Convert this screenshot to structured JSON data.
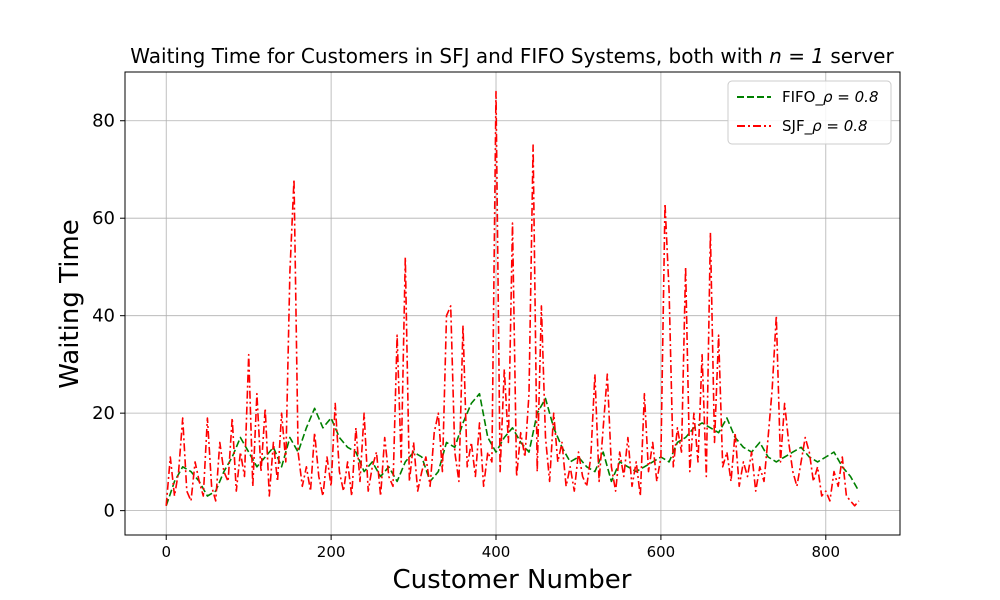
{
  "chart_data": {
    "type": "line",
    "title": "Waiting Time for Customers in SFJ and FIFO Systems, both with",
    "title_math": "n = 1",
    "title_suffix": "server",
    "xlabel": "Customer Number",
    "ylabel": "Waiting Time",
    "xlim": [
      -50,
      890
    ],
    "ylim": [
      -5,
      90
    ],
    "xticks": [
      0,
      200,
      400,
      600,
      800
    ],
    "yticks": [
      0,
      20,
      40,
      60,
      80
    ],
    "grid": true,
    "legend_position": "top-right",
    "series": [
      {
        "name": "FIFO_",
        "name_math": "ρ = 0.8",
        "color": "#008000",
        "style": "dashed",
        "x": [
          0,
          10,
          20,
          30,
          40,
          50,
          60,
          70,
          80,
          90,
          100,
          110,
          120,
          130,
          140,
          150,
          160,
          170,
          180,
          190,
          200,
          210,
          220,
          230,
          240,
          250,
          260,
          270,
          280,
          290,
          300,
          310,
          320,
          330,
          340,
          350,
          360,
          370,
          380,
          390,
          400,
          410,
          420,
          430,
          440,
          450,
          460,
          470,
          480,
          490,
          500,
          510,
          520,
          530,
          540,
          550,
          560,
          570,
          580,
          590,
          600,
          610,
          620,
          630,
          640,
          650,
          660,
          670,
          680,
          690,
          700,
          710,
          720,
          730,
          740,
          750,
          760,
          770,
          780,
          790,
          800,
          810,
          820,
          830,
          840
        ],
        "y": [
          1,
          6,
          9,
          8,
          6,
          3,
          4,
          8,
          11,
          15,
          12,
          9,
          11,
          13,
          9,
          15,
          12,
          17,
          21,
          17,
          19,
          15,
          13,
          12,
          8,
          10,
          7,
          9,
          6,
          10,
          12,
          11,
          6,
          8,
          14,
          13,
          18,
          22,
          24,
          15,
          12,
          15,
          17,
          14,
          12,
          20,
          23,
          17,
          13,
          10,
          11,
          9,
          8,
          12,
          6,
          10,
          9,
          8,
          9,
          10,
          11,
          10,
          14,
          15,
          17,
          18,
          17,
          16,
          19,
          15,
          13,
          12,
          14,
          11,
          10,
          11,
          12,
          13,
          11,
          10,
          11,
          12,
          9,
          7,
          4
        ]
      },
      {
        "name": "SJF_",
        "name_math": "ρ = 0.8",
        "color": "#ff0000",
        "style": "dashdot",
        "x": [
          0,
          5,
          10,
          15,
          20,
          25,
          30,
          35,
          40,
          45,
          50,
          55,
          60,
          65,
          70,
          75,
          80,
          85,
          90,
          95,
          100,
          105,
          110,
          115,
          120,
          125,
          130,
          135,
          140,
          145,
          150,
          155,
          160,
          165,
          170,
          175,
          180,
          185,
          190,
          195,
          200,
          205,
          210,
          215,
          220,
          225,
          230,
          235,
          240,
          245,
          250,
          255,
          260,
          265,
          270,
          275,
          280,
          285,
          290,
          295,
          300,
          305,
          310,
          315,
          320,
          325,
          330,
          335,
          340,
          345,
          350,
          355,
          360,
          365,
          370,
          375,
          380,
          385,
          390,
          395,
          400,
          405,
          410,
          415,
          420,
          425,
          430,
          435,
          440,
          445,
          450,
          455,
          460,
          465,
          470,
          475,
          480,
          485,
          490,
          495,
          500,
          505,
          510,
          515,
          520,
          525,
          530,
          535,
          540,
          545,
          550,
          555,
          560,
          565,
          570,
          575,
          580,
          585,
          590,
          595,
          600,
          605,
          610,
          615,
          620,
          625,
          630,
          635,
          640,
          645,
          650,
          655,
          660,
          665,
          670,
          675,
          680,
          685,
          690,
          695,
          700,
          705,
          710,
          715,
          720,
          725,
          730,
          735,
          740,
          745,
          750,
          755,
          760,
          765,
          770,
          775,
          780,
          785,
          790,
          795,
          800,
          805,
          810,
          815,
          820,
          825,
          830,
          835,
          840
        ],
        "y": [
          1,
          11,
          3,
          8,
          19,
          4,
          2,
          10,
          6,
          3,
          19,
          5,
          2,
          14,
          8,
          6,
          19,
          4,
          12,
          7,
          32,
          5,
          24,
          8,
          21,
          3,
          14,
          6,
          20,
          10,
          49,
          68,
          12,
          5,
          9,
          4,
          16,
          7,
          3,
          11,
          5,
          22,
          8,
          4,
          10,
          3,
          17,
          6,
          20,
          4,
          9,
          12,
          3,
          15,
          7,
          5,
          36,
          10,
          52,
          6,
          14,
          4,
          8,
          11,
          5,
          16,
          20,
          8,
          40,
          42,
          12,
          6,
          38,
          9,
          14,
          7,
          18,
          5,
          12,
          10,
          86,
          8,
          29,
          14,
          59,
          7,
          16,
          11,
          24,
          75,
          8,
          42,
          15,
          6,
          20,
          10,
          14,
          5,
          9,
          4,
          12,
          7,
          5,
          11,
          28,
          6,
          17,
          28,
          9,
          4,
          12,
          7,
          15,
          5,
          10,
          3,
          24,
          8,
          14,
          6,
          11,
          63,
          45,
          9,
          17,
          12,
          50,
          8,
          20,
          10,
          32,
          7,
          57,
          14,
          36,
          9,
          12,
          6,
          16,
          5,
          10,
          7,
          12,
          4,
          9,
          6,
          15,
          25,
          40,
          10,
          22,
          14,
          8,
          5,
          10,
          15,
          12,
          6,
          9,
          3,
          4,
          2,
          8,
          5,
          11,
          3,
          2,
          1,
          2
        ]
      }
    ]
  }
}
